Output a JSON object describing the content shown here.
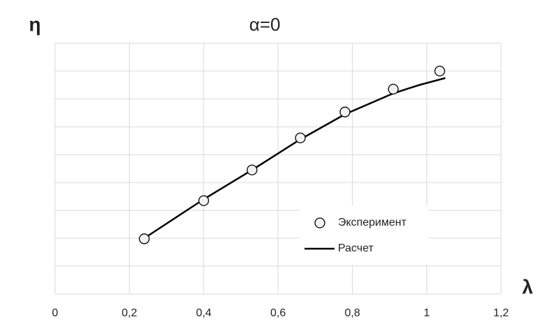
{
  "chart_data": {
    "type": "line",
    "title": "α=0",
    "y_label": "η",
    "x_label": "λ",
    "xlim": [
      0,
      1.2
    ],
    "xticks": [
      0,
      {
        "value": 0.2,
        "label": "0,2"
      },
      {
        "value": 0.4,
        "label": "0,4"
      },
      {
        "value": 0.6,
        "label": "0,6"
      },
      {
        "value": 0.8,
        "label": "0,8"
      },
      1,
      {
        "value": 1.2,
        "label": "1,2"
      }
    ],
    "ylim": [
      0,
      9
    ],
    "yticks": [
      0,
      1,
      2,
      3,
      4,
      5,
      6,
      7,
      8,
      9
    ],
    "show_ytick_labels": false,
    "grid": true,
    "legend_position": "lower right",
    "series": [
      {
        "name": "Эксперимент",
        "kind": "markers",
        "color": "#000000",
        "x": [
          0.24,
          0.4,
          0.53,
          0.66,
          0.78,
          0.91,
          1.035
        ],
        "values": [
          1.98,
          3.35,
          4.45,
          5.6,
          6.53,
          7.35,
          8.0
        ]
      },
      {
        "name": "Расчет",
        "kind": "line",
        "color": "#000000",
        "x": [
          0.24,
          0.4,
          0.53,
          0.66,
          0.78,
          0.91,
          0.98,
          1.05
        ],
        "values": [
          2.0,
          3.4,
          4.45,
          5.55,
          6.45,
          7.2,
          7.5,
          7.75
        ]
      }
    ]
  }
}
